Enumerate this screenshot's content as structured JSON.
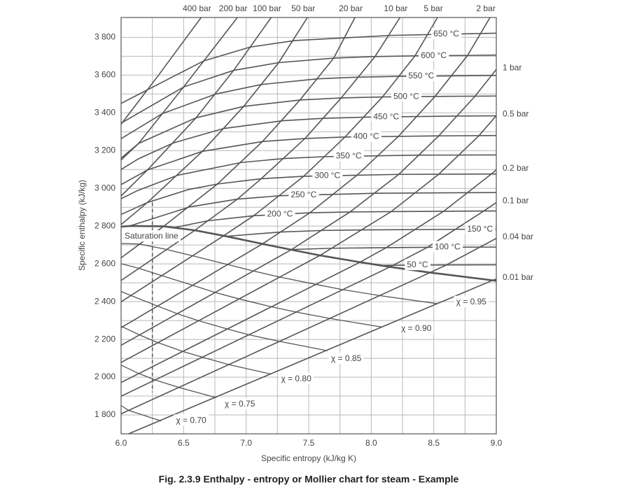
{
  "chart_data": {
    "type": "line",
    "title": "Fig. 2.3.9 Enthalpy - entropy or Mollier chart for steam - Example",
    "x_label": "Specific entropy (kJ/kg K)",
    "y_label": "Specific enthalpy (kJ/kg)",
    "xlim": [
      6,
      9
    ],
    "ylim": [
      1700,
      3905
    ],
    "xticks": [
      {
        "value": 6,
        "label": "6.0"
      },
      {
        "value": 6.5,
        "label": "6.5"
      },
      {
        "value": 7,
        "label": "7.0"
      },
      {
        "value": 7.5,
        "label": "7.5"
      },
      {
        "value": 8,
        "label": "8.0"
      },
      {
        "value": 8.5,
        "label": "8.5"
      },
      {
        "value": 9,
        "label": "9.0"
      }
    ],
    "yticks": [
      {
        "value": 1800,
        "label": "1 800"
      },
      {
        "value": 2000,
        "label": "2 000"
      },
      {
        "value": 2200,
        "label": "2 200"
      },
      {
        "value": 2400,
        "label": "2 400"
      },
      {
        "value": 2600,
        "label": "2 600"
      },
      {
        "value": 2800,
        "label": "2 800"
      },
      {
        "value": 3000,
        "label": "3 000"
      },
      {
        "value": 3200,
        "label": "3 200"
      },
      {
        "value": 3400,
        "label": "3 400"
      },
      {
        "value": 3600,
        "label": "3 600"
      },
      {
        "value": 3800,
        "label": "3 800"
      }
    ],
    "minor_xticks": [
      6.25,
      6.75,
      7.25,
      7.75,
      8.25,
      8.75
    ],
    "minor_yticks": [
      1900,
      2100,
      2300,
      2500,
      2700,
      2900,
      3100,
      3300,
      3500,
      3700
    ],
    "grid": true,
    "grid_color": "#b8b8b8",
    "line_color": "#555555",
    "isobars": [
      {
        "name": "400 bar",
        "x": [
          6.0,
          6.3,
          6.64
        ],
        "values": [
          3340,
          3600,
          3905
        ]
      },
      {
        "name": "200 bar",
        "x": [
          6.0,
          6.14,
          6.5,
          6.93
        ],
        "values": [
          3150,
          3238,
          3537,
          3905
        ]
      },
      {
        "name": "100 bar",
        "x": [
          6.0,
          6.21,
          6.6,
          6.9,
          7.2
        ],
        "values": [
          2960,
          3097,
          3374,
          3625,
          3905
        ]
      },
      {
        "name": "50 bar",
        "x": [
          6.0,
          6.21,
          6.65,
          6.98,
          7.26,
          7.49
        ],
        "values": [
          2808,
          2925,
          3196,
          3434,
          3666,
          3905
        ]
      },
      {
        "name": "20 bar",
        "x": [
          6.0,
          6.34,
          6.77,
          7.13,
          7.43,
          7.7,
          7.87
        ],
        "values": [
          2632,
          2799,
          3023,
          3248,
          3468,
          3690,
          3905
        ]
      },
      {
        "name": "10 bar",
        "x": [
          6.0,
          6.59,
          6.93,
          7.12,
          7.47,
          7.76,
          8.03,
          8.23
        ],
        "values": [
          2512,
          2778,
          2943,
          3051,
          3264,
          3479,
          3698,
          3905
        ]
      },
      {
        "name": "5 bar",
        "x": [
          6.0,
          6.82,
          7.06,
          7.46,
          7.79,
          8.09,
          8.35,
          8.53
        ],
        "values": [
          2399,
          2749,
          2855,
          3064,
          3272,
          3484,
          3702,
          3905
        ]
      },
      {
        "name": "2 bar",
        "x": [
          6.0,
          7.13,
          7.51,
          7.89,
          8.22,
          8.51,
          8.77,
          8.95
        ],
        "values": [
          2262,
          2706,
          2871,
          3072,
          3277,
          3487,
          3704,
          3905
        ]
      },
      {
        "name": "1 bar",
        "x": [
          6.0,
          7.36,
          7.83,
          8.22,
          8.54,
          8.83,
          9.0
        ],
        "values": [
          2169,
          2675,
          2875,
          3074,
          3278,
          3488,
          3630
        ]
      },
      {
        "name": "0.5 bar",
        "x": [
          6.0,
          7.59,
          8.16,
          8.54,
          8.86,
          9.0
        ],
        "values": [
          2078,
          2645,
          2877,
          3075,
          3278,
          3385
        ]
      },
      {
        "name": "0.2 bar",
        "x": [
          6.0,
          7.91,
          8.12,
          8.58,
          8.96,
          9.0
        ],
        "values": [
          1972,
          2609,
          2686,
          2879,
          3076,
          3098
        ]
      },
      {
        "name": "0.1 bar",
        "x": [
          6.0,
          8.15,
          8.45,
          8.9,
          9.0
        ],
        "values": [
          1899,
          2584,
          2688,
          2880,
          2925
        ]
      },
      {
        "name": "0.04 bar",
        "x": [
          6.0,
          8.47,
          8.6,
          9.0
        ],
        "values": [
          1806,
          2554,
          2594,
          2735
        ]
      },
      {
        "name": "0.01 bar",
        "x": [
          6.06,
          8.97,
          9.0
        ],
        "values": [
          1700,
          2513,
          2520
        ]
      }
    ],
    "isotherms": [
      {
        "name": "650 °C",
        "x": [
          6.0,
          6.19,
          6.66,
          7.03,
          7.39,
          8.15,
          9.0
        ],
        "values": [
          3450,
          3515,
          3675,
          3748,
          3783,
          3810,
          3822
        ]
      },
      {
        "name": "600 °C",
        "x": [
          6.0,
          6.5,
          6.9,
          7.26,
          7.7,
          8.03,
          8.35,
          8.77,
          9.0
        ],
        "values": [
          3345,
          3537,
          3625,
          3666,
          3690,
          3698,
          3702,
          3704,
          3706
        ]
      },
      {
        "name": "550 °C",
        "x": [
          6.0,
          6.33,
          6.76,
          7.12,
          7.57,
          7.88,
          8.21,
          9.0
        ],
        "values": [
          3263,
          3396,
          3500,
          3550,
          3580,
          3589,
          3593,
          3598
        ]
      },
      {
        "name": "500 °C",
        "x": [
          6.0,
          6.14,
          6.6,
          6.98,
          7.43,
          7.76,
          8.09,
          8.51,
          9.0
        ],
        "values": [
          3160,
          3238,
          3374,
          3434,
          3468,
          3479,
          3484,
          3487,
          3489
        ]
      },
      {
        "name": "450 °C",
        "x": [
          6.0,
          6.14,
          6.42,
          6.82,
          7.29,
          7.62,
          7.94,
          8.69,
          9.0
        ],
        "values": [
          3100,
          3157,
          3241,
          3317,
          3358,
          3371,
          3377,
          3383,
          3384
        ]
      },
      {
        "name": "400 °C",
        "x": [
          6.0,
          6.21,
          6.65,
          7.13,
          7.47,
          7.79,
          8.54,
          9.0
        ],
        "values": [
          3020,
          3097,
          3196,
          3248,
          3264,
          3272,
          3278,
          3280
        ]
      },
      {
        "name": "350 °C",
        "x": [
          6.0,
          6.13,
          6.45,
          6.96,
          7.3,
          7.63,
          8.38,
          9.0
        ],
        "values": [
          2945,
          2988,
          3069,
          3137,
          3158,
          3168,
          3176,
          3177
        ]
      },
      {
        "name": "300 °C",
        "x": [
          6.0,
          6.21,
          6.54,
          6.77,
          7.12,
          7.46,
          8.22,
          9.0
        ],
        "values": [
          2862,
          2925,
          2994,
          3023,
          3051,
          3064,
          3074,
          3076
        ]
      },
      {
        "name": "250 °C",
        "x": [
          6.07,
          6.55,
          6.93,
          7.27,
          8.03,
          9.0
        ],
        "values": [
          2801,
          2902,
          2943,
          2961,
          2974,
          2978
        ]
      },
      {
        "name": "200 °C",
        "x": [
          6.43,
          6.69,
          7.06,
          7.51,
          7.83,
          8.16,
          8.9,
          9.0
        ],
        "values": [
          2793,
          2828,
          2855,
          2871,
          2875,
          2877,
          2880,
          2880
        ]
      },
      {
        "name": "150 °C",
        "x": [
          6.84,
          7.28,
          7.61,
          7.94,
          8.69,
          9.0
        ],
        "values": [
          2746,
          2769,
          2777,
          2780,
          2783,
          2784
        ]
      },
      {
        "name": "100 °C",
        "x": [
          7.35,
          7.69,
          8.12,
          8.45,
          9.0
        ],
        "values": [
          2676,
          2683,
          2686,
          2688,
          2689
        ]
      },
      {
        "name": "50 °C",
        "x": [
          8.07,
          8.5,
          9.0
        ],
        "values": [
          2592,
          2594,
          2595
        ]
      }
    ],
    "quality_lines": [
      {
        "name": "χ = 0.95",
        "x": [
          6.0,
          6.15,
          6.36,
          6.57,
          6.85,
          7.06,
          7.27,
          7.56,
          7.77,
          8.07,
          8.53
        ],
        "values": [
          2708,
          2705,
          2677,
          2643,
          2597,
          2562,
          2530,
          2491,
          2464,
          2432,
          2389
        ]
      },
      {
        "name": "χ = 0.90",
        "x": [
          6.0,
          6.14,
          6.33,
          6.57,
          6.75,
          6.94,
          7.2,
          7.4,
          7.67,
          8.09
        ],
        "values": [
          2601,
          2577,
          2537,
          2487,
          2449,
          2415,
          2373,
          2345,
          2311,
          2265
        ]
      },
      {
        "name": "χ = 0.85",
        "x": [
          6.0,
          6.08,
          6.29,
          6.45,
          6.62,
          6.85,
          7.02,
          7.27,
          7.65
        ],
        "values": [
          2454,
          2432,
          2377,
          2336,
          2299,
          2255,
          2225,
          2189,
          2140
        ]
      },
      {
        "name": "χ = 0.80",
        "x": [
          6.0,
          6.15,
          6.29,
          6.49,
          6.65,
          6.86,
          7.2
        ],
        "values": [
          2270,
          2223,
          2184,
          2137,
          2106,
          2067,
          2016
        ]
      },
      {
        "name": "χ = 0.75",
        "x": [
          6.0,
          6.14,
          6.27,
          6.46,
          6.76
        ],
        "values": [
          2064,
          2020,
          1986,
          1946,
          1892
        ]
      },
      {
        "name": "χ = 0.70",
        "x": [
          6.0,
          6.06,
          6.32
        ],
        "values": [
          1850,
          1824,
          1768
        ]
      }
    ],
    "saturation_line": {
      "name": "Saturation line",
      "x": [
        6.0,
        6.07,
        6.34,
        6.59,
        6.82,
        7.13,
        7.36,
        7.59,
        7.91,
        8.15,
        8.47,
        8.97,
        9.0
      ],
      "values": [
        2797,
        2801,
        2799,
        2778,
        2749,
        2706,
        2675,
        2645,
        2609,
        2584,
        2554,
        2513,
        2510
      ]
    },
    "example_line": {
      "x": [
        6.25,
        6.25
      ],
      "values": [
        2925,
        1920
      ],
      "dashed": true
    }
  }
}
